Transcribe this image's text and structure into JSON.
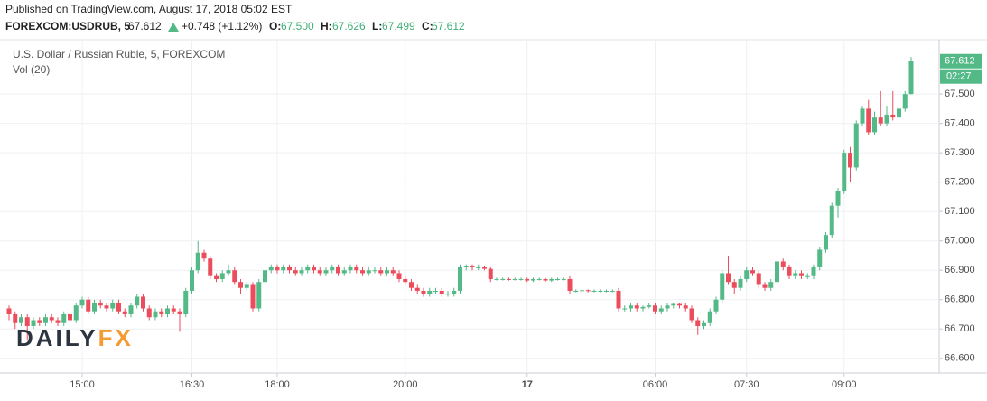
{
  "header": {
    "published": "Published on TradingView.com, August 17, 2018 05:02 EST",
    "symbol": "FOREXCOM:USDRUB, 5",
    "price": "67.612",
    "change": "+0.748 (+1.12%)",
    "o_label": "O:",
    "open": "67.500",
    "h_label": "H:",
    "high": "67.626",
    "l_label": "L:",
    "low": "67.499",
    "c_label": "C:",
    "close": "67.612"
  },
  "chart_data": {
    "type": "candlestick",
    "title": "U.S. Dollar / Russian Ruble, 5, FOREXCOM",
    "subtitle": "Vol (20)",
    "watermark": [
      "DAILY",
      "FX"
    ],
    "up_color": "#53b987",
    "down_color": "#eb4d5c",
    "grid": true,
    "ylim": [
      66.55,
      67.685
    ],
    "yticks": [
      {
        "value": 66.6,
        "label": "66.600"
      },
      {
        "value": 66.7,
        "label": "66.700"
      },
      {
        "value": 66.8,
        "label": "66.800"
      },
      {
        "value": 66.9,
        "label": "66.900"
      },
      {
        "value": 67.0,
        "label": "67.000"
      },
      {
        "value": 67.1,
        "label": "67.100"
      },
      {
        "value": 67.2,
        "label": "67.200"
      },
      {
        "value": 67.3,
        "label": "67.300"
      },
      {
        "value": 67.4,
        "label": "67.400"
      },
      {
        "value": 67.5,
        "label": "67.500"
      }
    ],
    "xticks": [
      {
        "value": 12,
        "label": "15:00"
      },
      {
        "value": 30,
        "label": "16:30"
      },
      {
        "value": 44,
        "label": "18:00"
      },
      {
        "value": 65,
        "label": "20:00"
      },
      {
        "value": 85,
        "label": "17"
      },
      {
        "value": 106,
        "label": "06:00"
      },
      {
        "value": 121,
        "label": "07:30"
      },
      {
        "value": 137,
        "label": "09:00"
      }
    ],
    "last_price": {
      "value": 67.612,
      "label": "67.612"
    },
    "countdown": "02:27",
    "ohlc": [
      [
        66.77,
        66.78,
        66.73,
        66.75
      ],
      [
        66.75,
        66.76,
        66.7,
        66.72
      ],
      [
        66.72,
        66.75,
        66.71,
        66.74
      ],
      [
        66.74,
        66.75,
        66.66,
        66.71
      ],
      [
        66.71,
        66.74,
        66.7,
        66.73
      ],
      [
        66.73,
        66.74,
        66.71,
        66.72
      ],
      [
        66.72,
        66.75,
        66.71,
        66.74
      ],
      [
        66.74,
        66.75,
        66.72,
        66.73
      ],
      [
        66.73,
        66.74,
        66.71,
        66.72
      ],
      [
        66.72,
        66.76,
        66.71,
        66.75
      ],
      [
        66.75,
        66.76,
        66.72,
        66.73
      ],
      [
        66.73,
        66.79,
        66.72,
        66.78
      ],
      [
        66.78,
        66.81,
        66.77,
        66.8
      ],
      [
        66.8,
        66.81,
        66.75,
        66.76
      ],
      [
        66.76,
        66.8,
        66.75,
        66.79
      ],
      [
        66.79,
        66.8,
        66.77,
        66.78
      ],
      [
        66.78,
        66.79,
        66.76,
        66.77
      ],
      [
        66.77,
        66.8,
        66.76,
        66.79
      ],
      [
        66.79,
        66.8,
        66.75,
        66.76
      ],
      [
        66.76,
        66.77,
        66.74,
        66.75
      ],
      [
        66.75,
        66.79,
        66.74,
        66.78
      ],
      [
        66.78,
        66.82,
        66.77,
        66.81
      ],
      [
        66.81,
        66.82,
        66.76,
        66.77
      ],
      [
        66.77,
        66.78,
        66.73,
        66.74
      ],
      [
        66.74,
        66.77,
        66.73,
        66.76
      ],
      [
        66.76,
        66.77,
        66.74,
        66.75
      ],
      [
        66.75,
        66.78,
        66.74,
        66.77
      ],
      [
        66.77,
        66.78,
        66.75,
        66.76
      ],
      [
        66.76,
        66.77,
        66.69,
        66.75
      ],
      [
        66.75,
        66.84,
        66.74,
        66.83
      ],
      [
        66.83,
        66.91,
        66.82,
        66.9
      ],
      [
        66.9,
        67.0,
        66.89,
        66.96
      ],
      [
        66.96,
        66.97,
        66.93,
        66.94
      ],
      [
        66.94,
        66.95,
        66.87,
        66.88
      ],
      [
        66.88,
        66.89,
        66.86,
        66.87
      ],
      [
        66.87,
        66.9,
        66.86,
        66.89
      ],
      [
        66.89,
        66.92,
        66.88,
        66.9
      ],
      [
        66.9,
        66.91,
        66.85,
        66.86
      ],
      [
        66.86,
        66.87,
        66.82,
        66.84
      ],
      [
        66.84,
        66.86,
        66.83,
        66.85
      ],
      [
        66.85,
        66.86,
        66.76,
        66.77
      ],
      [
        66.77,
        66.87,
        66.76,
        66.86
      ],
      [
        66.86,
        66.91,
        66.85,
        66.9
      ],
      [
        66.9,
        66.92,
        66.89,
        66.91
      ],
      [
        66.91,
        66.92,
        66.89,
        66.9
      ],
      [
        66.9,
        66.92,
        66.89,
        66.91
      ],
      [
        66.91,
        66.92,
        66.89,
        66.9
      ],
      [
        66.9,
        66.91,
        66.88,
        66.89
      ],
      [
        66.89,
        66.91,
        66.88,
        66.9
      ],
      [
        66.9,
        66.92,
        66.89,
        66.91
      ],
      [
        66.91,
        66.92,
        66.89,
        66.9
      ],
      [
        66.9,
        66.91,
        66.88,
        66.89
      ],
      [
        66.89,
        66.91,
        66.88,
        66.9
      ],
      [
        66.9,
        66.92,
        66.89,
        66.91
      ],
      [
        66.91,
        66.92,
        66.88,
        66.89
      ],
      [
        66.89,
        66.91,
        66.88,
        66.9
      ],
      [
        66.9,
        66.92,
        66.89,
        66.91
      ],
      [
        66.91,
        66.92,
        66.89,
        66.9
      ],
      [
        66.9,
        66.91,
        66.88,
        66.89
      ],
      [
        66.89,
        66.91,
        66.88,
        66.9
      ],
      [
        66.9,
        66.91,
        66.89,
        66.9
      ],
      [
        66.9,
        66.91,
        66.88,
        66.89
      ],
      [
        66.89,
        66.91,
        66.88,
        66.9
      ],
      [
        66.9,
        66.91,
        66.88,
        66.89
      ],
      [
        66.89,
        66.9,
        66.86,
        66.87
      ],
      [
        66.87,
        66.88,
        66.85,
        66.86
      ],
      [
        66.86,
        66.87,
        66.83,
        66.84
      ],
      [
        66.84,
        66.85,
        66.82,
        66.83
      ],
      [
        66.83,
        66.84,
        66.81,
        66.82
      ],
      [
        66.82,
        66.84,
        66.81,
        66.83
      ],
      [
        66.83,
        66.84,
        66.82,
        66.83
      ],
      [
        66.83,
        66.84,
        66.81,
        66.82
      ],
      [
        66.82,
        66.83,
        66.81,
        66.82
      ],
      [
        66.82,
        66.84,
        66.81,
        66.83
      ],
      [
        66.83,
        66.92,
        66.82,
        66.91
      ],
      [
        66.91,
        66.92,
        66.9,
        66.915
      ],
      [
        66.915,
        66.92,
        66.9,
        66.91
      ],
      [
        66.91,
        66.92,
        66.9,
        66.91
      ],
      [
        66.91,
        66.915,
        66.9,
        66.905
      ],
      [
        66.905,
        66.91,
        66.86,
        66.87
      ],
      [
        66.87,
        66.875,
        66.865,
        66.87
      ],
      [
        66.87,
        66.875,
        66.865,
        66.87
      ],
      [
        66.87,
        66.875,
        66.865,
        66.868
      ],
      [
        66.868,
        66.875,
        66.865,
        66.87
      ],
      [
        66.87,
        66.875,
        66.865,
        66.87
      ],
      [
        66.87,
        66.875,
        66.86,
        66.865
      ],
      [
        66.865,
        66.875,
        66.86,
        66.87
      ],
      [
        66.87,
        66.875,
        66.865,
        66.87
      ],
      [
        66.87,
        66.875,
        66.86,
        66.865
      ],
      [
        66.865,
        66.875,
        66.86,
        66.87
      ],
      [
        66.87,
        66.875,
        66.865,
        66.87
      ],
      [
        66.87,
        66.875,
        66.865,
        66.87
      ],
      [
        66.87,
        66.88,
        66.82,
        66.83
      ],
      [
        66.83,
        66.835,
        66.825,
        66.83
      ],
      [
        66.83,
        66.835,
        66.825,
        66.832
      ],
      [
        66.832,
        66.835,
        66.825,
        66.83
      ],
      [
        66.83,
        66.835,
        66.825,
        66.83
      ],
      [
        66.83,
        66.835,
        66.825,
        66.83
      ],
      [
        66.83,
        66.835,
        66.825,
        66.83
      ],
      [
        66.83,
        66.835,
        66.825,
        66.83
      ],
      [
        66.83,
        66.84,
        66.76,
        66.77
      ],
      [
        66.77,
        66.78,
        66.76,
        66.77
      ],
      [
        66.77,
        66.79,
        66.76,
        66.78
      ],
      [
        66.78,
        66.79,
        66.76,
        66.77
      ],
      [
        66.77,
        66.78,
        66.76,
        66.775
      ],
      [
        66.775,
        66.79,
        66.77,
        66.78
      ],
      [
        66.78,
        66.79,
        66.75,
        66.76
      ],
      [
        66.76,
        66.78,
        66.75,
        66.77
      ],
      [
        66.77,
        66.79,
        66.76,
        66.78
      ],
      [
        66.78,
        66.79,
        66.77,
        66.785
      ],
      [
        66.785,
        66.79,
        66.77,
        66.78
      ],
      [
        66.78,
        66.79,
        66.76,
        66.77
      ],
      [
        66.77,
        66.78,
        66.72,
        66.73
      ],
      [
        66.73,
        66.74,
        66.68,
        66.71
      ],
      [
        66.71,
        66.73,
        66.7,
        66.72
      ],
      [
        66.72,
        66.77,
        66.71,
        66.76
      ],
      [
        66.76,
        66.81,
        66.75,
        66.8
      ],
      [
        66.8,
        66.9,
        66.79,
        66.89
      ],
      [
        66.89,
        66.95,
        66.85,
        66.86
      ],
      [
        66.86,
        66.87,
        66.82,
        66.84
      ],
      [
        66.84,
        66.88,
        66.83,
        66.87
      ],
      [
        66.87,
        66.91,
        66.86,
        66.9
      ],
      [
        66.9,
        66.91,
        66.88,
        66.89
      ],
      [
        66.89,
        66.9,
        66.84,
        66.85
      ],
      [
        66.85,
        66.86,
        66.83,
        66.84
      ],
      [
        66.84,
        66.87,
        66.83,
        66.86
      ],
      [
        66.86,
        66.94,
        66.85,
        66.93
      ],
      [
        66.93,
        66.94,
        66.9,
        66.91
      ],
      [
        66.91,
        66.92,
        66.87,
        66.88
      ],
      [
        66.88,
        66.9,
        66.87,
        66.89
      ],
      [
        66.89,
        66.9,
        66.87,
        66.88
      ],
      [
        66.88,
        66.89,
        66.87,
        66.88
      ],
      [
        66.88,
        66.92,
        66.87,
        66.91
      ],
      [
        66.91,
        66.98,
        66.9,
        66.97
      ],
      [
        66.97,
        67.03,
        66.96,
        67.02
      ],
      [
        67.02,
        67.13,
        67.01,
        67.12
      ],
      [
        67.12,
        67.18,
        67.08,
        67.17
      ],
      [
        67.17,
        67.31,
        67.16,
        67.3
      ],
      [
        67.3,
        67.32,
        67.2,
        67.25
      ],
      [
        67.25,
        67.41,
        67.24,
        67.4
      ],
      [
        67.4,
        67.46,
        67.39,
        67.45
      ],
      [
        67.45,
        67.48,
        67.36,
        67.37
      ],
      [
        67.37,
        67.44,
        67.36,
        67.42
      ],
      [
        67.42,
        67.51,
        67.39,
        67.4
      ],
      [
        67.4,
        67.46,
        67.39,
        67.43
      ],
      [
        67.43,
        67.51,
        67.41,
        67.42
      ],
      [
        67.42,
        67.47,
        67.41,
        67.45
      ],
      [
        67.45,
        67.51,
        67.44,
        67.5
      ],
      [
        67.5,
        67.626,
        67.499,
        67.612
      ]
    ]
  }
}
